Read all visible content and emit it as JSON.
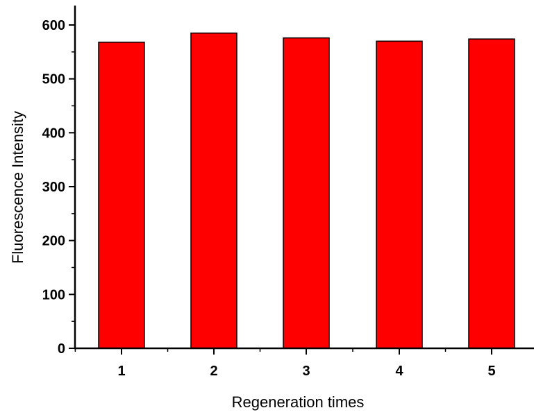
{
  "chart_data": {
    "type": "bar",
    "title": "",
    "xlabel": "Regeneration times",
    "ylabel": "Fluorescence Intensity",
    "categories": [
      "1",
      "2",
      "3",
      "4",
      "5"
    ],
    "values": [
      568,
      585,
      576,
      570,
      574
    ],
    "ylim": [
      0,
      600
    ],
    "yticks": [
      "0",
      "100",
      "200",
      "300",
      "400",
      "500",
      "600"
    ],
    "grid": false,
    "legend": "none",
    "bar_color": "#ff0000",
    "bar_edge_color": "#000000",
    "axis_color": "#000000"
  }
}
